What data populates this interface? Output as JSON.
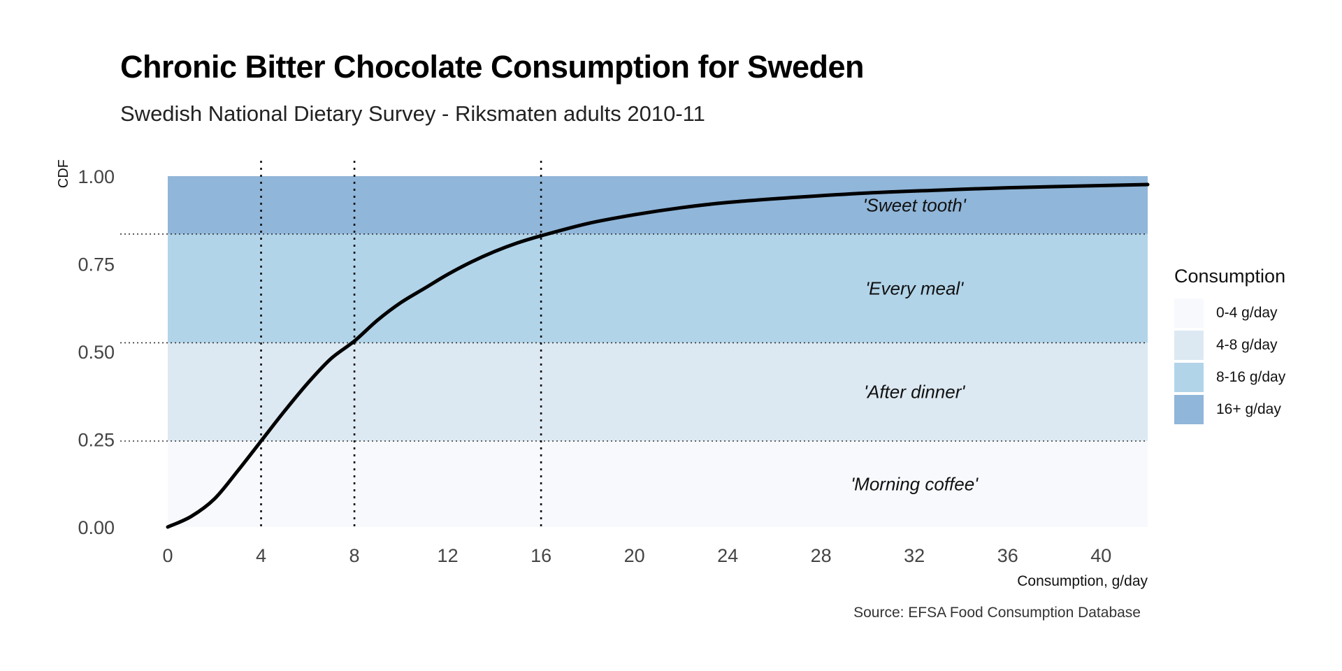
{
  "header": {
    "title": "Chronic Bitter Chocolate Consumption for Sweden",
    "subtitle": "Swedish National Dietary Survey - Riksmaten adults 2010-11"
  },
  "caption": "Source: EFSA Food Consumption Database",
  "legend": {
    "title": "Consumption",
    "items": [
      {
        "label": "0-4 g/day",
        "color": "#f7f9fd"
      },
      {
        "label": "4-8 g/day",
        "color": "#dde9f2"
      },
      {
        "label": "8-16 g/day",
        "color": "#b2d4e9"
      },
      {
        "label": "16+ g/day",
        "color": "#90b6d9"
      }
    ]
  },
  "chart_data": {
    "type": "line",
    "title": "Chronic Bitter Chocolate Consumption for Sweden",
    "subtitle": "Swedish National Dietary Survey - Riksmaten adults 2010-11",
    "xlabel": "Consumption, g/day",
    "ylabel": "CDF",
    "xlim": [
      0,
      42
    ],
    "ylim": [
      0,
      1
    ],
    "x_ticks": [
      0,
      4,
      8,
      12,
      16,
      20,
      24,
      28,
      32,
      36,
      40
    ],
    "y_ticks": [
      "0.00",
      "0.25",
      "0.50",
      "0.75",
      "1.00"
    ],
    "grid": false,
    "legend_position": "right",
    "series": [
      {
        "x": [
          0,
          1,
          2,
          3,
          4,
          5,
          6,
          7,
          8,
          9,
          10,
          11,
          12,
          13,
          14,
          15,
          16,
          18,
          20,
          22,
          24,
          27,
          30,
          33,
          36,
          40,
          42
        ],
        "values": [
          0.0,
          0.03,
          0.08,
          0.16,
          0.245,
          0.33,
          0.41,
          0.48,
          0.53,
          0.59,
          0.64,
          0.68,
          0.72,
          0.755,
          0.785,
          0.81,
          0.83,
          0.865,
          0.89,
          0.91,
          0.925,
          0.94,
          0.952,
          0.96,
          0.967,
          0.973,
          0.976
        ],
        "color": "#000000"
      }
    ],
    "bands": [
      {
        "label": "'Morning coffee'",
        "y0": 0.0,
        "y1": 0.245,
        "color": "#f7f9fd"
      },
      {
        "label": "'After dinner'",
        "y0": 0.245,
        "y1": 0.525,
        "color": "#dde9f2"
      },
      {
        "label": "'Every meal'",
        "y0": 0.525,
        "y1": 0.835,
        "color": "#b2d4e9"
      },
      {
        "label": "'Sweet tooth'",
        "y0": 0.835,
        "y1": 1.0,
        "color": "#90b6d9"
      }
    ],
    "vlines": [
      4,
      8,
      16
    ],
    "hlines": [
      0.245,
      0.525,
      0.835
    ],
    "band_label_x": 32
  }
}
